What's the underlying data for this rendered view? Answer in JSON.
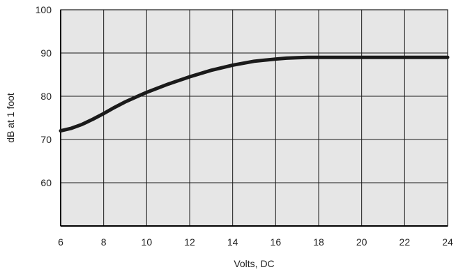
{
  "chart_data": {
    "type": "line",
    "title": "",
    "xlabel": "Volts, DC",
    "ylabel": "dB at 1 foot",
    "xlim": [
      6,
      24
    ],
    "ylim": [
      50,
      100
    ],
    "x_ticks": [
      6,
      8,
      10,
      12,
      14,
      16,
      18,
      20,
      22,
      24
    ],
    "y_ticks": [
      60,
      70,
      80,
      90,
      100
    ],
    "grid": true,
    "colors": {
      "background": "#e6e6e6",
      "grid": "#1a1a1a",
      "line": "#1a1a1a"
    },
    "series": [
      {
        "x": [
          6,
          6.5,
          7,
          7.5,
          8,
          8.5,
          9,
          9.5,
          10,
          11,
          12,
          13,
          14,
          15,
          16,
          16.5,
          17,
          17.5,
          18,
          20,
          22,
          24
        ],
        "y": [
          72.0,
          72.6,
          73.5,
          74.7,
          76.0,
          77.4,
          78.7,
          79.8,
          80.9,
          82.8,
          84.5,
          86.0,
          87.2,
          88.1,
          88.6,
          88.8,
          88.9,
          89.0,
          89.0,
          89.0,
          89.0,
          89.0
        ]
      }
    ]
  }
}
